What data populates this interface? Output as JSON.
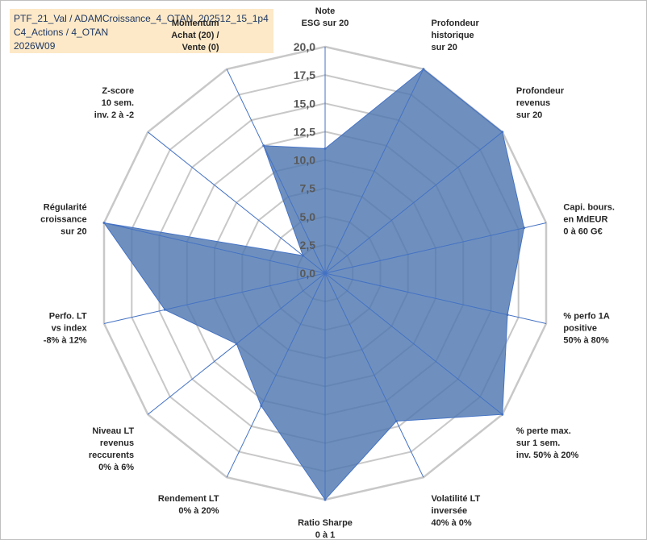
{
  "header": {
    "line1": "PTF_21_Val / ADAMCroissance_4_OTAN_202512_15_1p4",
    "line2": "C4_Actions / 4_OTAN",
    "line3": "2026W09"
  },
  "colors": {
    "fill": "#4f78b0",
    "grid": "#c8c8c8",
    "spoke": "#4472c4",
    "header_bg": "#fde9c7",
    "muted_label": "#a6a6a6"
  },
  "chart_data": {
    "type": "radar",
    "title": "",
    "rmax": 20,
    "ticks": [
      "0,0",
      "2,5",
      "5,0",
      "7,5",
      "10,0",
      "12,5",
      "15,0",
      "17,5",
      "20,0"
    ],
    "axes": [
      {
        "label": [
          "Note",
          "ESG sur 20"
        ],
        "value": 11,
        "label_color": "#262626"
      },
      {
        "label": [
          "Profondeur",
          "historique",
          "sur 20"
        ],
        "value": 20
      },
      {
        "label": [
          "Profondeur",
          "revenus",
          "sur 20"
        ],
        "value": 20
      },
      {
        "label": [
          "Capi. bours.",
          "en MdEUR",
          "0 à 60 G€"
        ],
        "value": 18
      },
      {
        "label": [
          "% perfo 1A",
          "positive",
          "50% à 80%"
        ],
        "value": 16.5
      },
      {
        "label": [
          "% perte max.",
          "sur 1 sem.",
          "inv. 50% à 20%"
        ],
        "value": 20
      },
      {
        "label": [
          "Volatilité LT",
          "inversée",
          "40% à 0%"
        ],
        "value": 14.5
      },
      {
        "label": [
          "Ratio Sharpe",
          "0 à 1"
        ],
        "value": 20
      },
      {
        "label": [
          "Rendement LT",
          "0% à 20%"
        ],
        "value": 13
      },
      {
        "label": [
          "Niveau LT",
          "revenus",
          "reccurents",
          "0% à 6%"
        ],
        "value": 10
      },
      {
        "label": [
          "Perfo. LT",
          "vs index",
          "-8% à 12%"
        ],
        "value": 14.5
      },
      {
        "label": [
          "Régularité",
          "croissance",
          "sur 20"
        ],
        "value": 20
      },
      {
        "label": [
          "Z-score",
          "10 sem.",
          "inv. 2 à -2"
        ],
        "value": 2.5
      },
      {
        "label": [
          "Momentum",
          "Achat (20) /",
          "Vente (0)"
        ],
        "value": 12.5
      }
    ]
  }
}
